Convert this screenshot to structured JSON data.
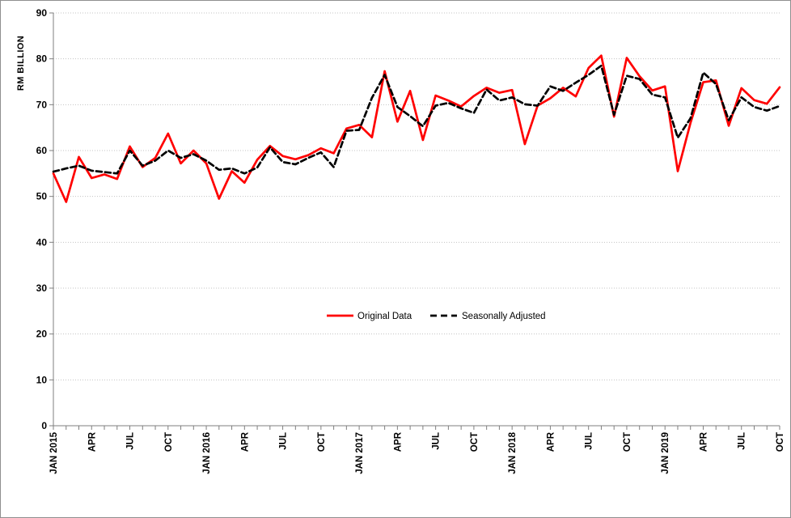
{
  "chart_data": {
    "type": "line",
    "title": "",
    "ylabel": "RM BILLION",
    "ylim": [
      0,
      90
    ],
    "ytick_step": 10,
    "grid": "on",
    "legend_position": "center-inside",
    "y_tick_labels": [
      "0",
      "10",
      "20",
      "30",
      "40",
      "50",
      "60",
      "70",
      "80",
      "90"
    ],
    "months": [
      "JAN 2015",
      "FEB 2015",
      "MAR 2015",
      "APR 2015",
      "MAY 2015",
      "JUN 2015",
      "JUL 2015",
      "AUG 2015",
      "SEP 2015",
      "OCT 2015",
      "NOV 2015",
      "DEC 2015",
      "JAN 2016",
      "FEB 2016",
      "MAR 2016",
      "APR 2016",
      "MAY 2016",
      "JUN 2016",
      "JUL 2016",
      "AUG 2016",
      "SEP 2016",
      "OCT 2016",
      "NOV 2016",
      "DEC 2016",
      "JAN 2017",
      "FEB 2017",
      "MAR 2017",
      "APR 2017",
      "MAY 2017",
      "JUN 2017",
      "JUL 2017",
      "AUG 2017",
      "SEP 2017",
      "OCT 2017",
      "NOV 2017",
      "DEC 2017",
      "JAN 2018",
      "FEB 2018",
      "MAR 2018",
      "APR 2018",
      "MAY 2018",
      "JUN 2018",
      "JUL 2018",
      "AUG 2018",
      "SEP 2018",
      "OCT 2018",
      "NOV 2018",
      "DEC 2018",
      "JAN 2019",
      "FEB 2019",
      "MAR 2019",
      "APR 2019",
      "MAY 2019",
      "JUN 2019",
      "JUL 2019",
      "AUG 2019",
      "SEP 2019",
      "OCT 2019"
    ],
    "x_tick_labels": [
      "JAN 2015",
      "",
      "",
      "APR",
      "",
      "",
      "JUL",
      "",
      "",
      "OCT",
      "",
      "",
      "JAN 2016",
      "",
      "",
      "APR",
      "",
      "",
      "JUL",
      "",
      "",
      "OCT",
      "",
      "",
      "JAN 2017",
      "",
      "",
      "APR",
      "",
      "",
      "JUL",
      "",
      "",
      "OCT",
      "",
      "",
      "JAN 2018",
      "",
      "",
      "APR",
      "",
      "",
      "JUL",
      "",
      "",
      "OCT",
      "",
      "",
      "JAN 2019",
      "",
      "",
      "APR",
      "",
      "",
      "JUL",
      "",
      "",
      "OCT"
    ],
    "series": [
      {
        "name": "Original Data",
        "color": "#FF0000",
        "style": "solid",
        "values": [
          55.0,
          48.8,
          58.6,
          54.0,
          54.8,
          53.8,
          60.9,
          56.4,
          58.4,
          63.7,
          57.2,
          60.0,
          57.2,
          49.5,
          55.5,
          53.0,
          58.0,
          61.0,
          58.8,
          58.1,
          59.0,
          60.5,
          59.4,
          64.8,
          65.6,
          62.9,
          77.3,
          66.3,
          73.0,
          62.3,
          72.0,
          70.9,
          69.6,
          71.9,
          73.7,
          72.6,
          73.2,
          61.4,
          69.8,
          71.4,
          73.7,
          71.8,
          78.0,
          80.7,
          67.4,
          80.2,
          76.2,
          73.1,
          74.0,
          55.5,
          66.0,
          74.9,
          75.3,
          65.4,
          73.6,
          71.0,
          70.2,
          73.8
        ]
      },
      {
        "name": "Seasonally Adjusted",
        "color": "#000000",
        "style": "dashed",
        "values": [
          55.4,
          56.1,
          56.7,
          55.6,
          55.3,
          55.0,
          60.0,
          56.7,
          57.8,
          60.0,
          58.4,
          59.2,
          57.8,
          55.8,
          56.1,
          55.0,
          56.3,
          60.7,
          57.5,
          57.0,
          58.4,
          59.6,
          56.4,
          64.3,
          64.5,
          71.5,
          76.5,
          69.5,
          67.5,
          65.3,
          69.8,
          70.4,
          69.2,
          68.2,
          73.3,
          70.9,
          71.6,
          70.1,
          69.8,
          74.0,
          73.0,
          74.8,
          76.5,
          78.5,
          67.8,
          76.3,
          75.6,
          72.2,
          71.6,
          62.8,
          67.0,
          77.0,
          74.5,
          66.6,
          71.6,
          69.5,
          68.7,
          69.7
        ]
      }
    ],
    "colors": {
      "grid": "#c3c3c3",
      "axis": "#7f7f7f",
      "tick_text": "#000000",
      "legend_text": "#262626",
      "frame_border": "#8f8f8f"
    }
  }
}
